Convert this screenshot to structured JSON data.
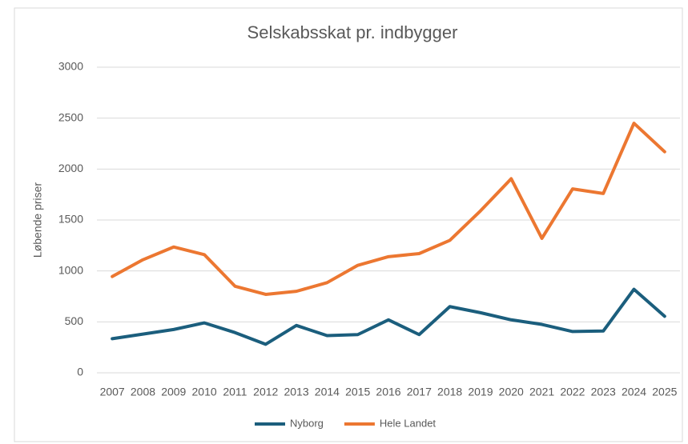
{
  "chart_data": {
    "type": "line",
    "title": "Selskabsskat pr. indbygger",
    "ylabel": "Løbende priser",
    "categories": [
      "2007",
      "2008",
      "2009",
      "2010",
      "2011",
      "2012",
      "2013",
      "2014",
      "2015",
      "2016",
      "2017",
      "2018",
      "2019",
      "2020",
      "2021",
      "2022",
      "2023",
      "2024",
      "2025"
    ],
    "series": [
      {
        "name": "Nyborg",
        "color": "#1b5e7d",
        "values": [
          335,
          380,
          425,
          490,
          395,
          280,
          465,
          365,
          375,
          520,
          375,
          650,
          590,
          520,
          475,
          405,
          410,
          820,
          555
        ]
      },
      {
        "name": "Hele Landet",
        "color": "#ec7731",
        "values": [
          945,
          1110,
          1235,
          1160,
          850,
          770,
          800,
          885,
          1055,
          1140,
          1170,
          1300,
          1590,
          1905,
          1320,
          1805,
          1760,
          2450,
          2170
        ]
      }
    ],
    "ylim": [
      0,
      3000
    ],
    "yticks": [
      0,
      500,
      1000,
      1500,
      2000,
      2500,
      3000
    ],
    "grid": true,
    "legend": "bottom"
  }
}
